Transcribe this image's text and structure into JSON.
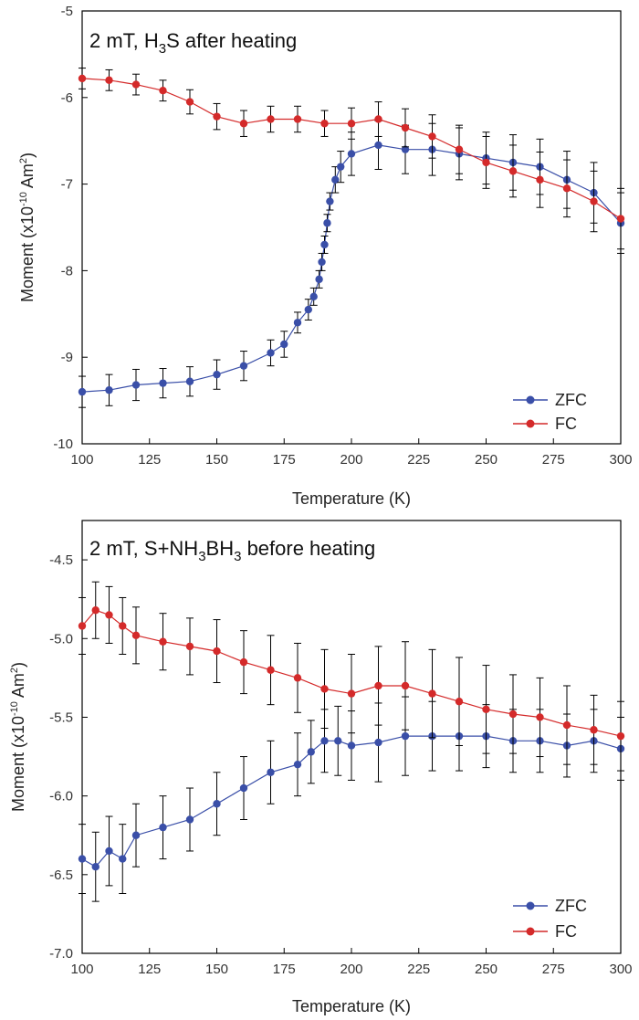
{
  "chart_data": [
    {
      "type": "scatter",
      "title_parts": [
        "2 mT, H",
        "3",
        "S after heating"
      ],
      "xlabel": "Temperature (K)",
      "ylabel_parts": [
        "Moment (x10",
        "-10",
        " Am",
        "2",
        ")"
      ],
      "xlim": [
        100,
        300
      ],
      "ylim": [
        -10,
        -5
      ],
      "xticks": [
        100,
        125,
        150,
        175,
        200,
        225,
        250,
        275,
        300
      ],
      "xtick_labels": [
        "100",
        "125",
        "150",
        "175",
        "200",
        "225",
        "250",
        "275",
        "300"
      ],
      "yticks": [
        -10,
        -9,
        -8,
        -7,
        -6,
        -5
      ],
      "ytick_labels": [
        "-10",
        "-9",
        "-8",
        "-7",
        "-6",
        "-5"
      ],
      "legend_position": "bottom-right",
      "error_bars": true,
      "series": [
        {
          "name": "ZFC",
          "color": "#3a4fa8",
          "x": [
            100,
            110,
            120,
            130,
            140,
            150,
            160,
            170,
            175,
            180,
            184,
            186,
            188,
            189,
            190,
            191,
            192,
            194,
            196,
            200,
            210,
            220,
            230,
            240,
            250,
            260,
            270,
            280,
            290,
            300
          ],
          "y": [
            -9.4,
            -9.38,
            -9.32,
            -9.3,
            -9.28,
            -9.2,
            -9.1,
            -8.95,
            -8.85,
            -8.6,
            -8.45,
            -8.3,
            -8.1,
            -7.9,
            -7.7,
            -7.45,
            -7.2,
            -6.95,
            -6.8,
            -6.65,
            -6.55,
            -6.6,
            -6.6,
            -6.65,
            -6.7,
            -6.75,
            -6.8,
            -6.95,
            -7.1,
            -7.45
          ],
          "yerr": [
            0.18,
            0.18,
            0.18,
            0.17,
            0.17,
            0.17,
            0.17,
            0.15,
            0.15,
            0.12,
            0.12,
            0.1,
            0.1,
            0.1,
            0.1,
            0.1,
            0.1,
            0.15,
            0.18,
            0.25,
            0.28,
            0.28,
            0.3,
            0.3,
            0.3,
            0.32,
            0.32,
            0.33,
            0.35,
            0.35
          ]
        },
        {
          "name": "FC",
          "color": "#d42a2a",
          "x": [
            100,
            110,
            120,
            130,
            140,
            150,
            160,
            170,
            180,
            190,
            200,
            210,
            220,
            230,
            240,
            250,
            260,
            270,
            280,
            290,
            300
          ],
          "y": [
            -5.78,
            -5.8,
            -5.85,
            -5.92,
            -6.05,
            -6.22,
            -6.3,
            -6.25,
            -6.25,
            -6.3,
            -6.3,
            -6.25,
            -6.35,
            -6.45,
            -6.6,
            -6.75,
            -6.85,
            -6.95,
            -7.05,
            -7.2,
            -7.4
          ],
          "yerr": [
            0.12,
            0.12,
            0.12,
            0.12,
            0.14,
            0.15,
            0.15,
            0.15,
            0.15,
            0.15,
            0.18,
            0.2,
            0.22,
            0.25,
            0.28,
            0.3,
            0.3,
            0.32,
            0.33,
            0.35,
            0.35
          ]
        }
      ]
    },
    {
      "type": "scatter",
      "title_parts": [
        "2 mT, S+NH",
        "3",
        "BH",
        "3",
        " before heating"
      ],
      "xlabel": "Temperature (K)",
      "ylabel_parts": [
        "Moment (x10",
        "-10",
        " Am",
        "2",
        ")"
      ],
      "xlim": [
        100,
        300
      ],
      "ylim": [
        -7,
        -4.25
      ],
      "xticks": [
        100,
        125,
        150,
        175,
        200,
        225,
        250,
        275,
        300
      ],
      "xtick_labels": [
        "100",
        "125",
        "150",
        "175",
        "200",
        "225",
        "250",
        "275",
        "300"
      ],
      "yticks": [
        -7,
        -6.5,
        -6,
        -5.5,
        -5,
        -4.5
      ],
      "ytick_labels": [
        "-7.0",
        "-6.5",
        "-6.0",
        "-5.5",
        "-5.0",
        "-4.5"
      ],
      "legend_position": "bottom-right",
      "error_bars": true,
      "series": [
        {
          "name": "ZFC",
          "color": "#3a4fa8",
          "x": [
            100,
            105,
            110,
            115,
            120,
            130,
            140,
            150,
            160,
            170,
            180,
            185,
            190,
            195,
            200,
            210,
            220,
            230,
            240,
            250,
            260,
            270,
            280,
            290,
            300
          ],
          "y": [
            -6.4,
            -6.45,
            -6.35,
            -6.4,
            -6.25,
            -6.2,
            -6.15,
            -6.05,
            -5.95,
            -5.85,
            -5.8,
            -5.72,
            -5.65,
            -5.65,
            -5.68,
            -5.66,
            -5.62,
            -5.62,
            -5.62,
            -5.62,
            -5.65,
            -5.65,
            -5.68,
            -5.65,
            -5.7
          ],
          "yerr": [
            0.22,
            0.22,
            0.22,
            0.22,
            0.2,
            0.2,
            0.2,
            0.2,
            0.2,
            0.2,
            0.2,
            0.2,
            0.2,
            0.22,
            0.22,
            0.25,
            0.25,
            0.22,
            0.22,
            0.2,
            0.2,
            0.2,
            0.2,
            0.2,
            0.2
          ]
        },
        {
          "name": "FC",
          "color": "#d42a2a",
          "x": [
            100,
            105,
            110,
            115,
            120,
            130,
            140,
            150,
            160,
            170,
            180,
            190,
            200,
            210,
            220,
            230,
            240,
            250,
            260,
            270,
            280,
            290,
            300
          ],
          "y": [
            -4.92,
            -4.82,
            -4.85,
            -4.92,
            -4.98,
            -5.02,
            -5.05,
            -5.08,
            -5.15,
            -5.2,
            -5.25,
            -5.32,
            -5.35,
            -5.3,
            -5.3,
            -5.35,
            -5.4,
            -5.45,
            -5.48,
            -5.5,
            -5.55,
            -5.58,
            -5.62
          ],
          "yerr": [
            0.18,
            0.18,
            0.18,
            0.18,
            0.18,
            0.18,
            0.18,
            0.2,
            0.2,
            0.22,
            0.22,
            0.25,
            0.25,
            0.25,
            0.28,
            0.28,
            0.28,
            0.28,
            0.25,
            0.25,
            0.25,
            0.22,
            0.22
          ]
        }
      ]
    }
  ]
}
